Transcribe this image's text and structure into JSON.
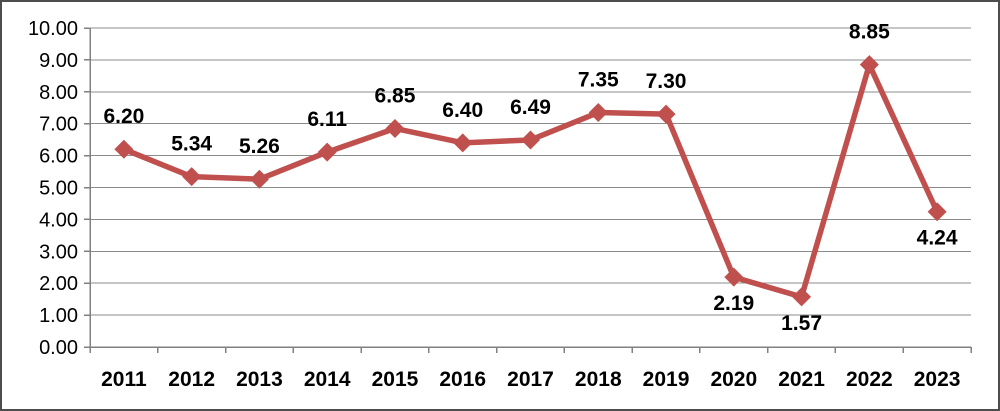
{
  "chart_data": {
    "type": "line",
    "title": "",
    "categories": [
      "2011",
      "2012",
      "2013",
      "2014",
      "2015",
      "2016",
      "2017",
      "2018",
      "2019",
      "2020",
      "2021",
      "2022",
      "2023"
    ],
    "series": [
      {
        "name": "",
        "values": [
          6.2,
          5.34,
          5.26,
          6.11,
          6.85,
          6.4,
          6.49,
          7.35,
          7.3,
          2.19,
          1.57,
          8.85,
          4.24
        ]
      }
    ],
    "data_labels": {
      "visible": true,
      "decimals": 2,
      "sides": [
        "above",
        "above",
        "above",
        "above",
        "above",
        "above",
        "above",
        "above",
        "above",
        "below",
        "below",
        "above",
        "below"
      ]
    },
    "y_axis": {
      "min": 0,
      "max": 10,
      "step": 1,
      "tick_labels": [
        "0.00",
        "1.00",
        "2.00",
        "3.00",
        "4.00",
        "5.00",
        "6.00",
        "7.00",
        "8.00",
        "9.00",
        "10.00"
      ]
    },
    "x_axis": {
      "tick_labels": [
        "2011",
        "2012",
        "2013",
        "2014",
        "2015",
        "2016",
        "2017",
        "2018",
        "2019",
        "2020",
        "2021",
        "2022",
        "2023"
      ]
    },
    "grid": true,
    "legend": "none",
    "marker": "diamond",
    "colors": {
      "series": "#C0504D",
      "grid": "#8C8C8C",
      "axis": "#808080",
      "text": "#000000",
      "border": "#4D4D4D",
      "background": "#FFFFFF"
    }
  }
}
